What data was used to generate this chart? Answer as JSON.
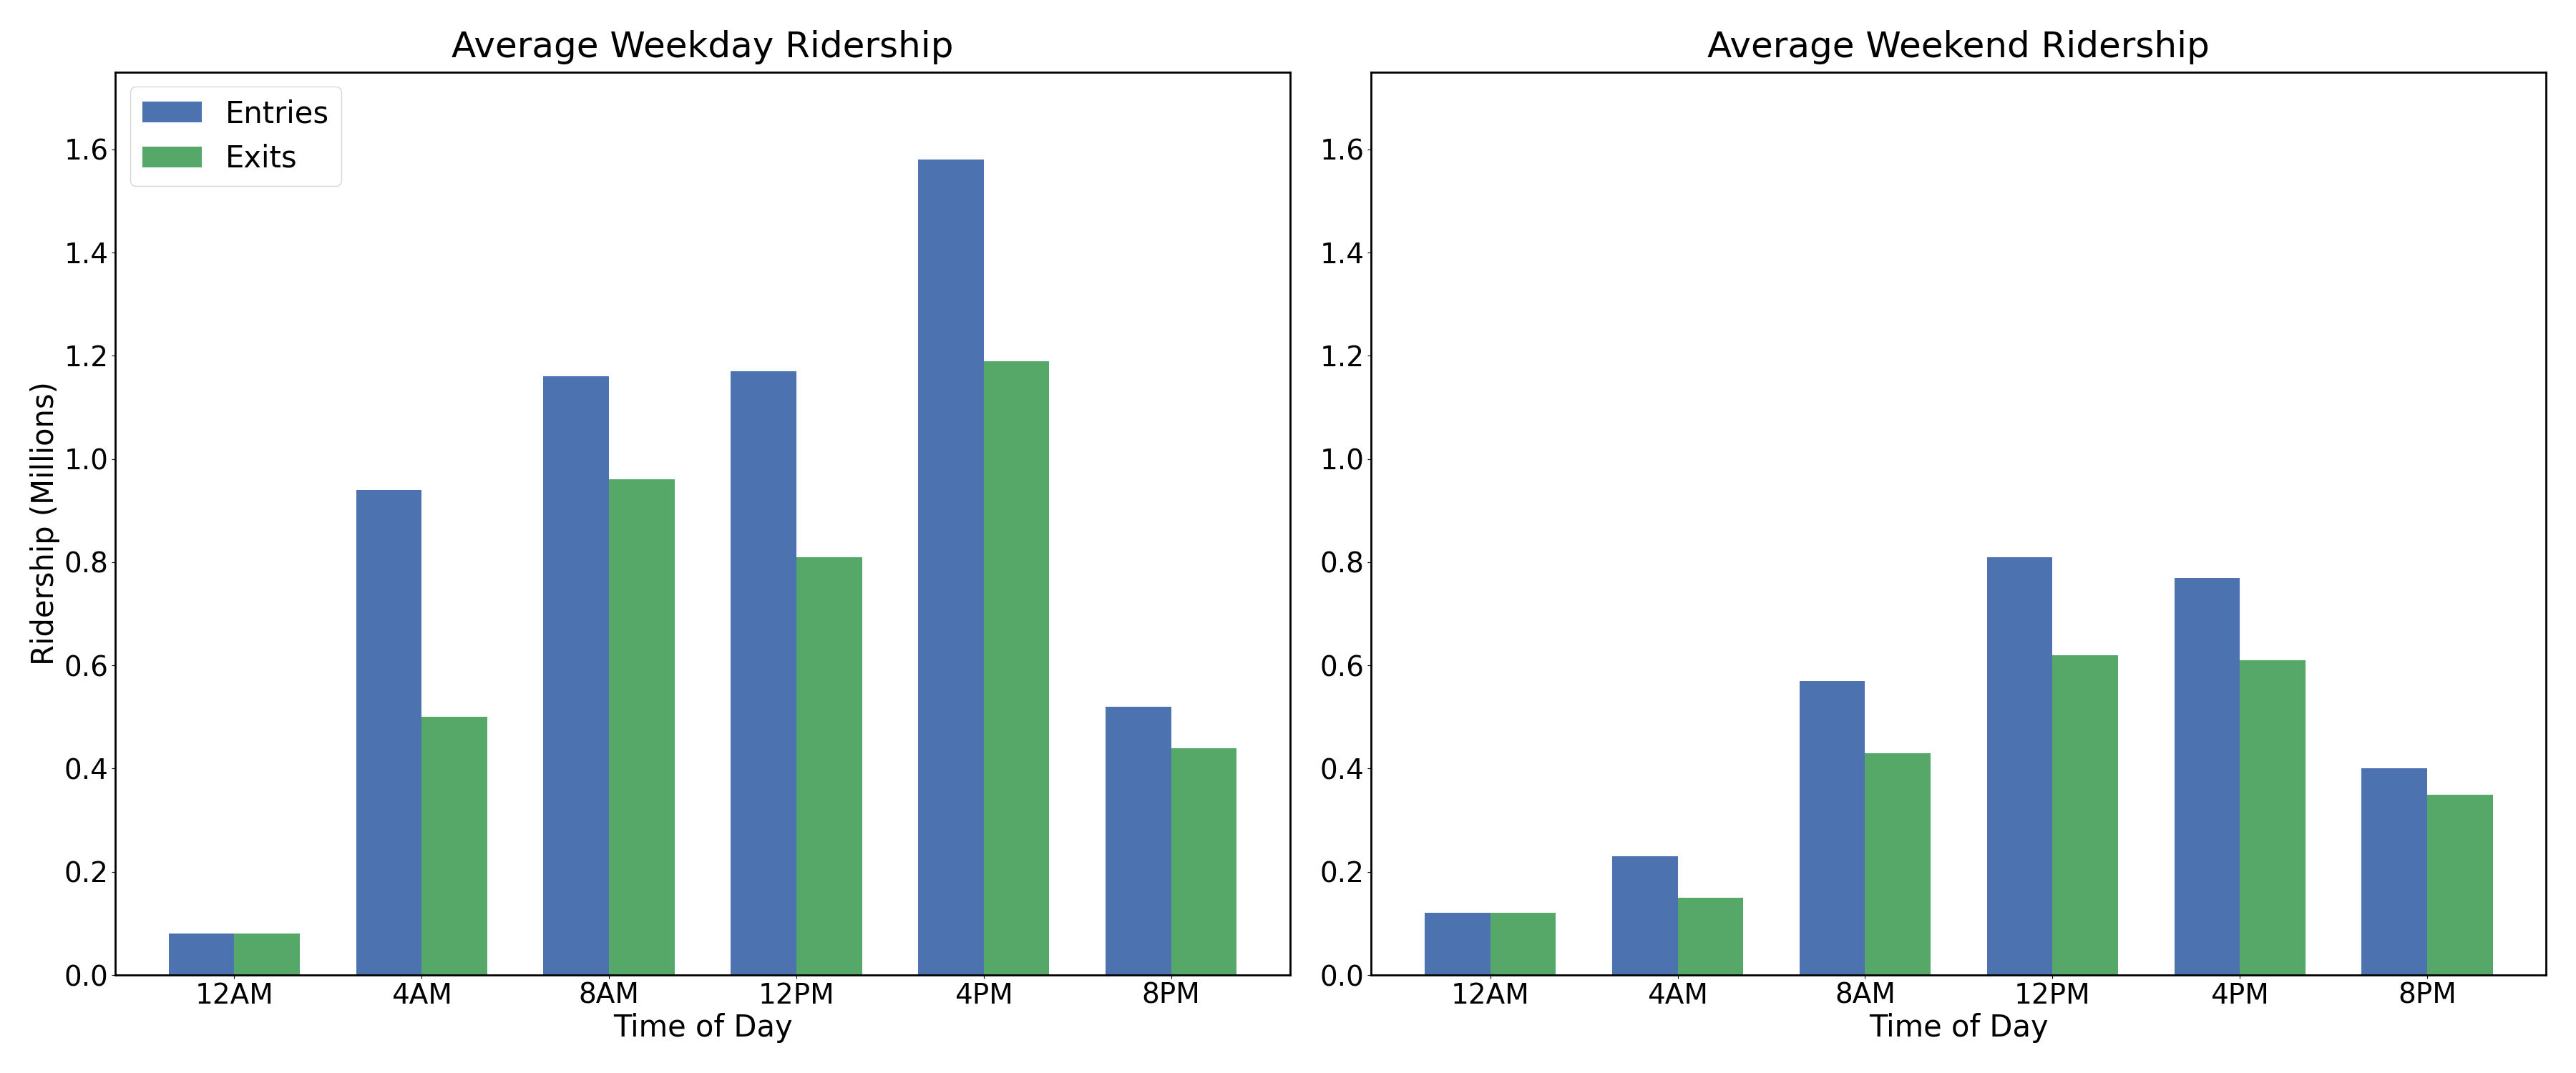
{
  "weekday_title": "Average Weekday Ridership",
  "weekend_title": "Average Weekend Ridership",
  "xlabel": "Time of Day",
  "ylabel": "Ridership (Millions)",
  "categories": [
    "12AM",
    "4AM",
    "8AM",
    "12PM",
    "4PM",
    "8PM"
  ],
  "weekday_entries": [
    0.08,
    0.94,
    1.16,
    1.17,
    1.58,
    0.52
  ],
  "weekday_exits": [
    0.08,
    0.5,
    0.96,
    0.81,
    1.19,
    0.44
  ],
  "weekend_entries": [
    0.12,
    0.23,
    0.57,
    0.81,
    0.77,
    0.4
  ],
  "weekend_exits": [
    0.12,
    0.15,
    0.43,
    0.62,
    0.61,
    0.35
  ],
  "entries_color": "#4C72B0",
  "exits_color": "#55A868",
  "ylim_weekday": [
    0,
    1.75
  ],
  "ylim_weekend": [
    0,
    1.75
  ],
  "bar_width": 0.35,
  "title_fontsize": 36,
  "label_fontsize": 30,
  "tick_fontsize": 28,
  "legend_fontsize": 30
}
